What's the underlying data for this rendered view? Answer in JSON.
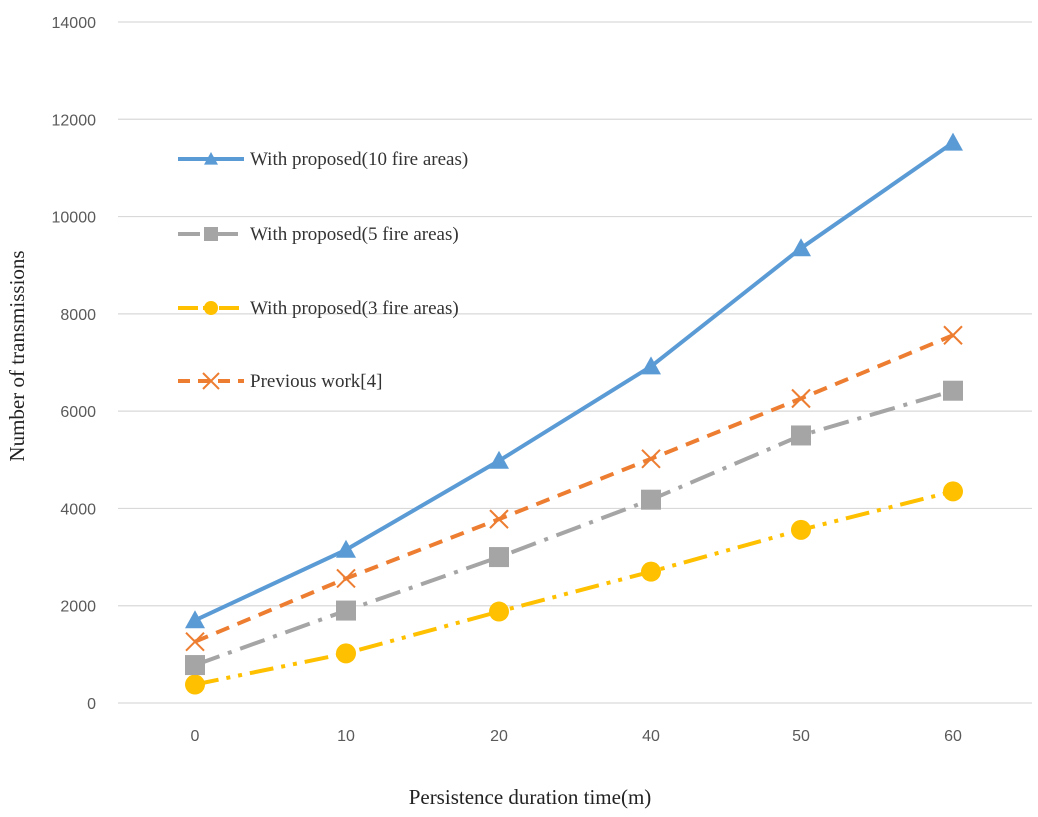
{
  "chart_data": {
    "type": "line",
    "title": "",
    "xlabel": "Persistence duration time(m)",
    "ylabel": "Number  of transmissions",
    "categories": [
      "0",
      "10",
      "20",
      "40",
      "50",
      "60"
    ],
    "yticks": [
      "0",
      "2000",
      "4000",
      "6000",
      "8000",
      "10000",
      "12000",
      "14000"
    ],
    "ylim": [
      0,
      14000
    ],
    "grid": true,
    "legend_position": "top-left",
    "series": [
      {
        "name": "With proposed(10 fire areas)",
        "values": [
          1700,
          3150,
          4980,
          6920,
          9350,
          11520
        ],
        "color": "#5b9bd5",
        "marker": "triangle",
        "dash": "solid"
      },
      {
        "name": "With proposed(5 fire areas)",
        "values": [
          780,
          1900,
          3000,
          4180,
          5500,
          6420
        ],
        "color": "#a5a5a5",
        "marker": "square",
        "dash": "dash-dot"
      },
      {
        "name": "With proposed(3 fire areas)",
        "values": [
          380,
          1020,
          1880,
          2700,
          3560,
          4350
        ],
        "color": "#ffc000",
        "marker": "circle",
        "dash": "dash-dot-dot"
      },
      {
        "name": "Previous work[4]",
        "values": [
          1260,
          2560,
          3780,
          5020,
          6260,
          7560
        ],
        "color": "#ed7d31",
        "marker": "x",
        "dash": "dash"
      }
    ]
  }
}
